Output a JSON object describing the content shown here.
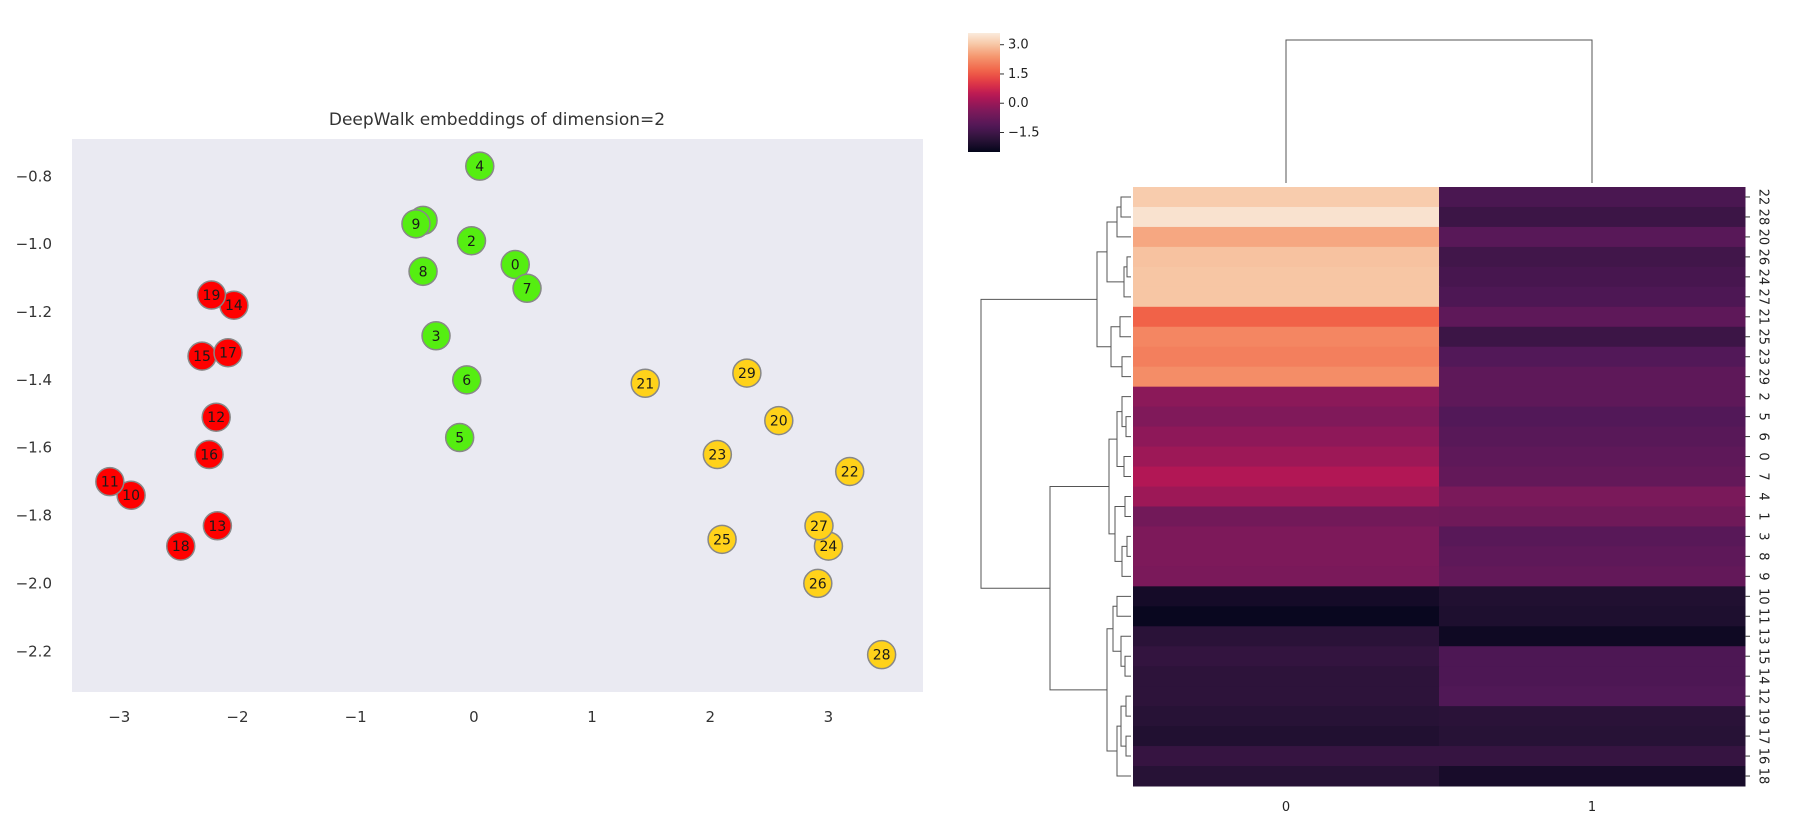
{
  "chart_data": [
    {
      "type": "scatter",
      "title": "DeepWalk embeddings of dimension=2",
      "xlabel": "",
      "ylabel": "",
      "xlim": [
        -3.4,
        3.8
      ],
      "ylim": [
        -2.32,
        -0.69
      ],
      "xticks": [
        -3,
        -2,
        -1,
        0,
        1,
        2,
        3
      ],
      "yticks": [
        -0.8,
        -1.0,
        -1.2,
        -1.4,
        -1.6,
        -1.8,
        -2.0,
        -2.2
      ],
      "grid": false,
      "background_color": "#eaeaf2",
      "group_colors": {
        "red": "#ff0000",
        "green": "#55ee11",
        "yellow": "#ffd21a"
      },
      "points": [
        {
          "label": "0",
          "x": 0.35,
          "y": -1.06,
          "group": "green"
        },
        {
          "label": "1",
          "x": -0.43,
          "y": -0.93,
          "group": "green"
        },
        {
          "label": "2",
          "x": -0.02,
          "y": -0.99,
          "group": "green"
        },
        {
          "label": "3",
          "x": -0.32,
          "y": -1.27,
          "group": "green"
        },
        {
          "label": "4",
          "x": 0.05,
          "y": -0.77,
          "group": "green"
        },
        {
          "label": "5",
          "x": -0.12,
          "y": -1.57,
          "group": "green"
        },
        {
          "label": "6",
          "x": -0.06,
          "y": -1.4,
          "group": "green"
        },
        {
          "label": "7",
          "x": 0.45,
          "y": -1.13,
          "group": "green"
        },
        {
          "label": "8",
          "x": -0.43,
          "y": -1.08,
          "group": "green"
        },
        {
          "label": "9",
          "x": -0.49,
          "y": -0.94,
          "group": "green"
        },
        {
          "label": "10",
          "x": -2.9,
          "y": -1.74,
          "group": "red"
        },
        {
          "label": "11",
          "x": -3.08,
          "y": -1.7,
          "group": "red"
        },
        {
          "label": "12",
          "x": -2.18,
          "y": -1.51,
          "group": "red"
        },
        {
          "label": "13",
          "x": -2.17,
          "y": -1.83,
          "group": "red"
        },
        {
          "label": "14",
          "x": -2.03,
          "y": -1.18,
          "group": "red"
        },
        {
          "label": "15",
          "x": -2.3,
          "y": -1.33,
          "group": "red"
        },
        {
          "label": "16",
          "x": -2.24,
          "y": -1.62,
          "group": "red"
        },
        {
          "label": "17",
          "x": -2.08,
          "y": -1.32,
          "group": "red"
        },
        {
          "label": "18",
          "x": -2.48,
          "y": -1.89,
          "group": "red"
        },
        {
          "label": "19",
          "x": -2.22,
          "y": -1.15,
          "group": "red"
        },
        {
          "label": "20",
          "x": 2.58,
          "y": -1.52,
          "group": "yellow"
        },
        {
          "label": "21",
          "x": 1.45,
          "y": -1.41,
          "group": "yellow"
        },
        {
          "label": "22",
          "x": 3.18,
          "y": -1.67,
          "group": "yellow"
        },
        {
          "label": "23",
          "x": 2.06,
          "y": -1.62,
          "group": "yellow"
        },
        {
          "label": "24",
          "x": 3.0,
          "y": -1.89,
          "group": "yellow"
        },
        {
          "label": "25",
          "x": 2.1,
          "y": -1.87,
          "group": "yellow"
        },
        {
          "label": "26",
          "x": 2.91,
          "y": -2.0,
          "group": "yellow"
        },
        {
          "label": "27",
          "x": 2.92,
          "y": -1.83,
          "group": "yellow"
        },
        {
          "label": "28",
          "x": 3.45,
          "y": -2.21,
          "group": "yellow"
        },
        {
          "label": "29",
          "x": 2.31,
          "y": -1.38,
          "group": "yellow"
        }
      ]
    },
    {
      "type": "heatmap",
      "title": "",
      "columns": [
        "0",
        "1"
      ],
      "rows": [
        "22",
        "28",
        "20",
        "26",
        "24",
        "27",
        "21",
        "25",
        "23",
        "29",
        "2",
        "5",
        "6",
        "0",
        "7",
        "4",
        "1",
        "3",
        "8",
        "9",
        "10",
        "11",
        "13",
        "15",
        "14",
        "12",
        "19",
        "17",
        "16",
        "18"
      ],
      "values": [
        [
          3.1,
          -1.3
        ],
        [
          3.45,
          -1.55
        ],
        [
          2.6,
          -1.05
        ],
        [
          2.95,
          -1.45
        ],
        [
          3.0,
          -1.35
        ],
        [
          3.0,
          -1.25
        ],
        [
          1.65,
          -0.95
        ],
        [
          2.15,
          -1.55
        ],
        [
          2.05,
          -1.15
        ],
        [
          2.25,
          -0.95
        ],
        [
          -0.2,
          -0.95
        ],
        [
          -0.35,
          -1.15
        ],
        [
          -0.15,
          -1.05
        ],
        [
          0.05,
          -0.95
        ],
        [
          0.35,
          -0.85
        ],
        [
          0.05,
          -0.45
        ],
        [
          -0.6,
          -0.65
        ],
        [
          -0.4,
          -1.05
        ],
        [
          -0.4,
          -0.95
        ],
        [
          -0.45,
          -0.85
        ],
        [
          -2.2,
          -2.0
        ],
        [
          -2.4,
          -2.05
        ],
        [
          -1.85,
          -2.3
        ],
        [
          -1.7,
          -1.25
        ],
        [
          -1.8,
          -1.25
        ],
        [
          -1.8,
          -1.2
        ],
        [
          -1.9,
          -1.85
        ],
        [
          -2.0,
          -1.9
        ],
        [
          -1.65,
          -1.65
        ],
        [
          -1.9,
          -2.15
        ]
      ],
      "colorbar": {
        "min": -2.5,
        "max": 3.6,
        "ticks": [
          3.0,
          1.5,
          0.0,
          -1.5
        ],
        "tick_labels": [
          "3.0",
          "1.5",
          "0.0",
          "−1.5"
        ],
        "colormap": "rocket"
      },
      "row_dendrogram": true,
      "col_dendrogram": true
    }
  ]
}
